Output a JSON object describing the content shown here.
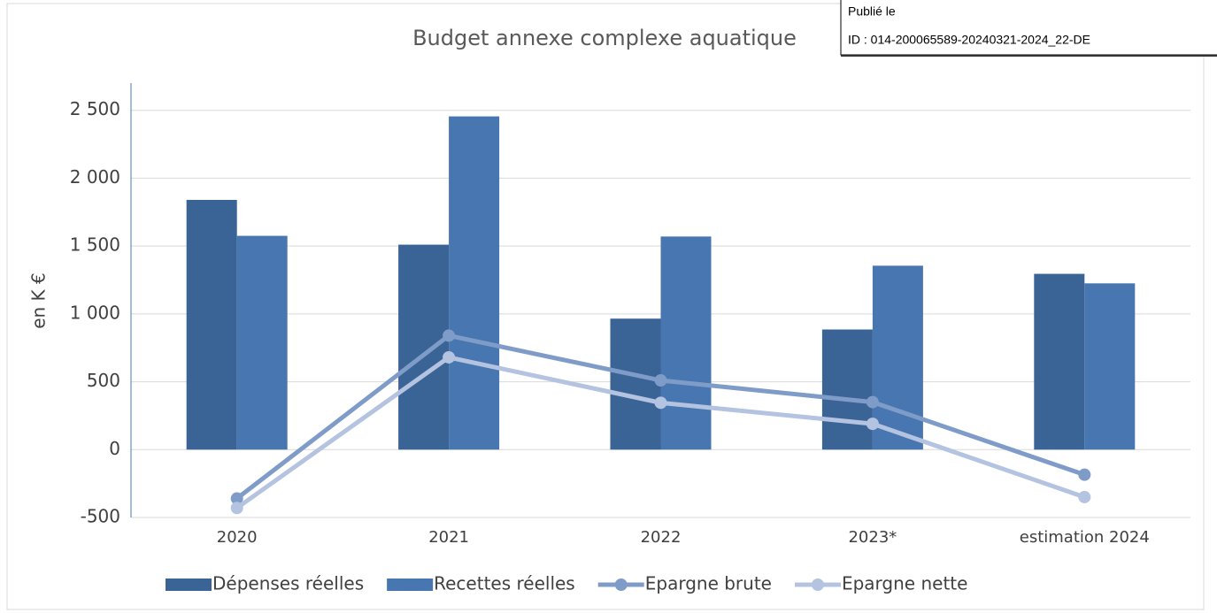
{
  "chart_data": {
    "type": "bar_line",
    "title": "Budget annexe complexe aquatique",
    "y_label": "en K €",
    "categories": [
      "2020",
      "2021",
      "2022",
      "2023*",
      "estimation 2024"
    ],
    "series": [
      {
        "name": "Dépenses réelles",
        "type": "bar",
        "color": "#3a6396",
        "values": [
          1840,
          1510,
          965,
          885,
          1295
        ]
      },
      {
        "name": "Recettes réelles",
        "type": "bar",
        "color": "#4776b0",
        "values": [
          1575,
          2455,
          1570,
          1355,
          1225
        ]
      },
      {
        "name": "Epargne brute",
        "type": "line",
        "color": "#7f9cc9",
        "values": [
          -360,
          840,
          510,
          350,
          -185
        ]
      },
      {
        "name": "Epargne nette",
        "type": "line",
        "color": "#b4c3e0",
        "values": [
          -430,
          680,
          345,
          190,
          -350
        ]
      }
    ],
    "ylim": [
      -500,
      2700
    ],
    "yticks": [
      -500,
      0,
      500,
      {
        "value": 1000,
        "label": "1 000"
      },
      {
        "value": 1500,
        "label": "1 500"
      },
      {
        "value": 2000,
        "label": "2 000"
      },
      {
        "value": 2500,
        "label": "2 500"
      }
    ],
    "grid": true,
    "legend": "bottom"
  },
  "stamp": {
    "line1": "Publié le",
    "line2": "ID : 014-200065589-20240321-2024_22-DE"
  }
}
